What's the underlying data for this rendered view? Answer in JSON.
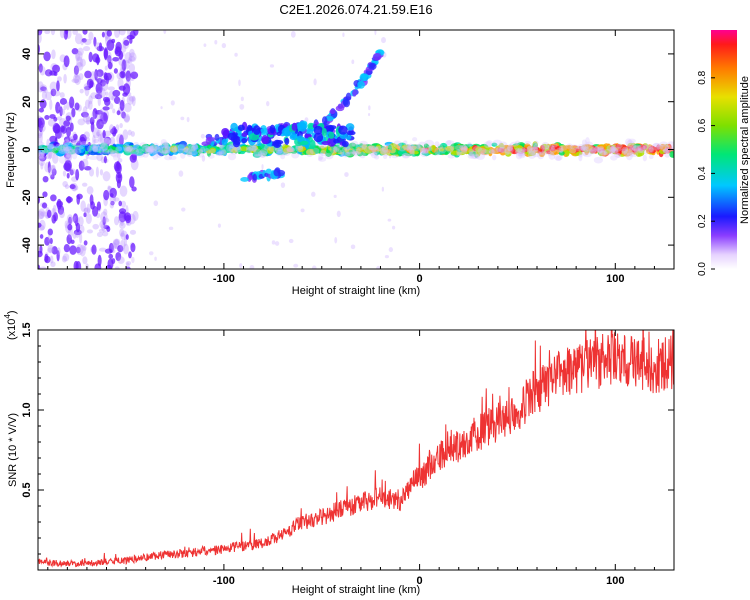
{
  "title": "C2E1.2026.074.21.59.E16",
  "chart_data": [
    {
      "type": "heatmap",
      "xlabel": "Height of straight line (km)",
      "ylabel": "Frequency (Hz)",
      "xlim": [
        -195,
        130
      ],
      "ylim": [
        -50,
        50
      ],
      "xticks": [
        -100,
        0,
        100
      ],
      "yticks": [
        -40,
        -20,
        0,
        20,
        40
      ],
      "colorbar": {
        "label": "Normalized spectral amplitude",
        "range": [
          0,
          1
        ],
        "ticks": [
          "0.0",
          "0.2",
          "0.4",
          "0.6",
          "0.8"
        ]
      },
      "ridges": [
        {
          "name": "main-carrier",
          "x": [
            -195,
            130
          ],
          "y": [
            0,
            0
          ]
        },
        {
          "name": "rising-trace",
          "x": [
            -50,
            -40,
            -30,
            -25,
            -20
          ],
          "y": [
            10,
            18,
            28,
            34,
            40
          ]
        },
        {
          "name": "upper-branch",
          "x": [
            -110,
            -90,
            -70,
            -55,
            -40
          ],
          "y": [
            3,
            6,
            9,
            10,
            8
          ]
        },
        {
          "name": "lower-branch",
          "x": [
            -90,
            -80,
            -70
          ],
          "y": [
            -12,
            -11,
            -10
          ]
        }
      ]
    },
    {
      "type": "line",
      "xlabel": "Height of straight line (km)",
      "ylabel": "SNR (10 * V/V)",
      "yscale_label": "(x10",
      "yscale_exp": "4",
      "yscale_suffix": ")",
      "xlim": [
        -195,
        130
      ],
      "ylim": [
        0,
        1.5
      ],
      "xticks": [
        -100,
        0,
        100
      ],
      "yticks": [
        "0.5",
        "1.0",
        "1.5"
      ],
      "line_color": "#ee3333",
      "series": [
        {
          "name": "SNR",
          "x": [
            -195,
            -180,
            -160,
            -150,
            -140,
            -130,
            -120,
            -110,
            -100,
            -90,
            -80,
            -70,
            -60,
            -50,
            -40,
            -30,
            -20,
            -10,
            0,
            10,
            20,
            30,
            40,
            50,
            60,
            70,
            80,
            90,
            100,
            110,
            120,
            130
          ],
          "y": [
            0.05,
            0.04,
            0.05,
            0.06,
            0.08,
            0.1,
            0.1,
            0.12,
            0.13,
            0.15,
            0.17,
            0.22,
            0.3,
            0.33,
            0.38,
            0.42,
            0.45,
            0.44,
            0.58,
            0.7,
            0.78,
            0.86,
            0.92,
            1.0,
            1.12,
            1.2,
            1.26,
            1.3,
            1.32,
            1.3,
            1.27,
            1.3
          ]
        }
      ]
    }
  ]
}
